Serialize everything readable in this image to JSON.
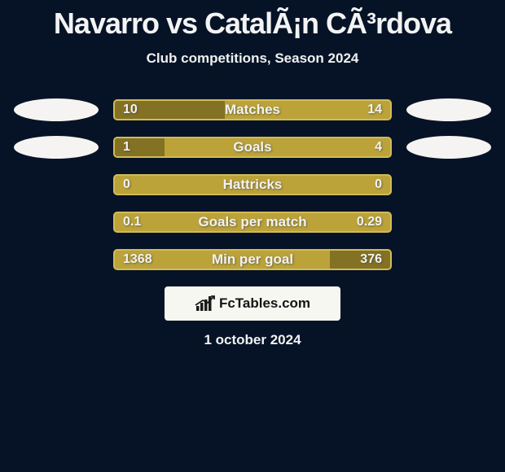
{
  "title": "Navarro vs CatalÃ¡n CÃ³rdova",
  "subtitle": "Club competitions, Season 2024",
  "colors": {
    "background": "#061327",
    "bar_track": "#bba33a",
    "bar_border": "#d2bb57",
    "bar_fill": "#837224",
    "ellipse": "#f6f4f2",
    "text": "#f2f2f2"
  },
  "stats": [
    {
      "label": "Matches",
      "left_value": "10",
      "right_value": "14",
      "left_fill_pct": 40,
      "right_fill_pct": 0,
      "show_left_ellipse": true,
      "show_right_ellipse": true
    },
    {
      "label": "Goals",
      "left_value": "1",
      "right_value": "4",
      "left_fill_pct": 18,
      "right_fill_pct": 0,
      "show_left_ellipse": true,
      "show_right_ellipse": true
    },
    {
      "label": "Hattricks",
      "left_value": "0",
      "right_value": "0",
      "left_fill_pct": 0,
      "right_fill_pct": 0,
      "show_left_ellipse": false,
      "show_right_ellipse": false
    },
    {
      "label": "Goals per match",
      "left_value": "0.1",
      "right_value": "0.29",
      "left_fill_pct": 0,
      "right_fill_pct": 0,
      "show_left_ellipse": false,
      "show_right_ellipse": false
    },
    {
      "label": "Min per goal",
      "left_value": "1368",
      "right_value": "376",
      "left_fill_pct": 0,
      "right_fill_pct": 22,
      "show_left_ellipse": false,
      "show_right_ellipse": false
    }
  ],
  "logo": {
    "text": "FcTables.com"
  },
  "date": "1 october 2024"
}
